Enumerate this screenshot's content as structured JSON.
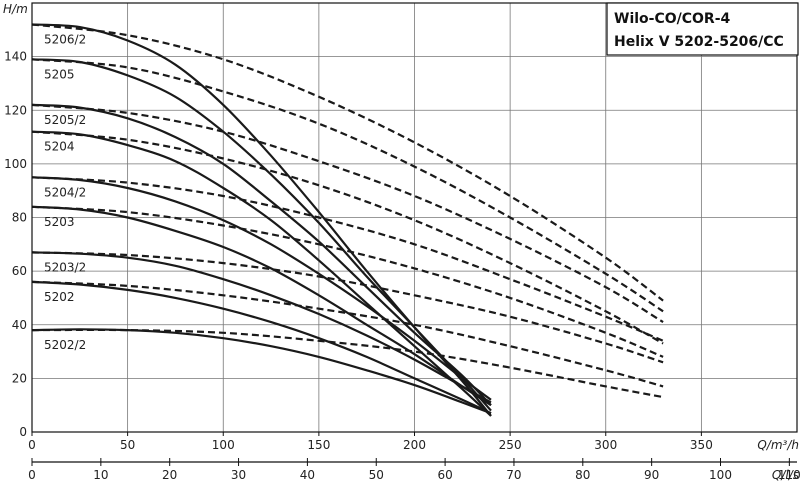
{
  "chart_data": {
    "type": "line",
    "title": [
      "Wilo-CO/COR-4",
      "Helix V 5202-5206/CC"
    ],
    "xlabel": "Q/m³/h",
    "x2label": "Q/l/s",
    "ylabel": "H/m",
    "xlim": [
      0,
      400
    ],
    "x2lim": [
      0,
      111.1
    ],
    "ylim": [
      0,
      160
    ],
    "xticks": [
      "0",
      "50",
      "100",
      "150",
      "200",
      "250",
      "300",
      "350"
    ],
    "x2ticks": [
      "0",
      "10",
      "20",
      "30",
      "40",
      "50",
      "60",
      "70",
      "80",
      "90",
      "100",
      "110"
    ],
    "yticks": [
      "0",
      "20",
      "40",
      "60",
      "80",
      "100",
      "120",
      "140"
    ],
    "grid": true,
    "series": [
      {
        "name": "5206/2",
        "solid": [
          [
            0,
            152
          ],
          [
            25,
            151
          ],
          [
            50,
            146
          ],
          [
            75,
            137
          ],
          [
            100,
            122
          ],
          [
            125,
            103
          ],
          [
            150,
            82
          ],
          [
            175,
            60
          ],
          [
            200,
            39
          ],
          [
            225,
            19
          ],
          [
            240,
            6
          ]
        ],
        "dashed": [
          [
            0,
            152
          ],
          [
            50,
            148
          ],
          [
            100,
            139
          ],
          [
            150,
            125
          ],
          [
            200,
            108
          ],
          [
            250,
            88
          ],
          [
            300,
            65
          ],
          [
            330,
            49
          ]
        ]
      },
      {
        "name": "5205",
        "solid": [
          [
            0,
            139
          ],
          [
            25,
            138
          ],
          [
            50,
            133
          ],
          [
            75,
            125
          ],
          [
            100,
            112
          ],
          [
            125,
            96
          ],
          [
            150,
            78
          ],
          [
            175,
            58
          ],
          [
            200,
            39
          ],
          [
            225,
            20
          ],
          [
            240,
            8
          ]
        ],
        "dashed": [
          [
            0,
            139
          ],
          [
            50,
            136
          ],
          [
            100,
            127
          ],
          [
            150,
            115
          ],
          [
            200,
            99
          ],
          [
            250,
            80
          ],
          [
            300,
            59
          ],
          [
            330,
            45
          ]
        ]
      },
      {
        "name": "5205/2",
        "solid": [
          [
            0,
            122
          ],
          [
            25,
            121
          ],
          [
            50,
            117
          ],
          [
            75,
            110
          ],
          [
            100,
            100
          ],
          [
            125,
            86
          ],
          [
            150,
            71
          ],
          [
            175,
            54
          ],
          [
            200,
            37
          ],
          [
            225,
            21
          ],
          [
            240,
            10
          ]
        ],
        "dashed": [
          [
            0,
            122
          ],
          [
            50,
            119
          ],
          [
            100,
            112
          ],
          [
            150,
            101
          ],
          [
            200,
            88
          ],
          [
            250,
            72
          ],
          [
            300,
            54
          ],
          [
            330,
            41
          ]
        ]
      },
      {
        "name": "5204",
        "solid": [
          [
            0,
            112
          ],
          [
            25,
            111
          ],
          [
            50,
            107
          ],
          [
            75,
            101
          ],
          [
            100,
            91
          ],
          [
            125,
            79
          ],
          [
            150,
            64
          ],
          [
            175,
            48
          ],
          [
            200,
            32
          ],
          [
            225,
            16
          ],
          [
            240,
            6
          ]
        ],
        "dashed": [
          [
            0,
            112
          ],
          [
            50,
            109
          ],
          [
            100,
            102
          ],
          [
            150,
            92
          ],
          [
            200,
            79
          ],
          [
            250,
            63
          ],
          [
            300,
            45
          ],
          [
            330,
            33
          ]
        ]
      },
      {
        "name": "5204/2",
        "solid": [
          [
            0,
            95
          ],
          [
            25,
            94
          ],
          [
            50,
            91
          ],
          [
            75,
            86
          ],
          [
            100,
            79
          ],
          [
            125,
            70
          ],
          [
            150,
            59
          ],
          [
            175,
            47
          ],
          [
            200,
            34
          ],
          [
            225,
            20
          ],
          [
            240,
            12
          ]
        ],
        "dashed": [
          [
            0,
            95
          ],
          [
            50,
            93
          ],
          [
            100,
            88
          ],
          [
            150,
            80
          ],
          [
            200,
            70
          ],
          [
            250,
            57
          ],
          [
            300,
            43
          ],
          [
            330,
            34
          ]
        ]
      },
      {
        "name": "5203",
        "solid": [
          [
            0,
            84
          ],
          [
            25,
            83
          ],
          [
            50,
            80
          ],
          [
            75,
            75
          ],
          [
            100,
            69
          ],
          [
            125,
            61
          ],
          [
            150,
            51
          ],
          [
            175,
            40
          ],
          [
            200,
            29
          ],
          [
            225,
            17
          ],
          [
            240,
            10
          ]
        ],
        "dashed": [
          [
            0,
            84
          ],
          [
            50,
            82
          ],
          [
            100,
            77
          ],
          [
            150,
            70
          ],
          [
            200,
            61
          ],
          [
            250,
            50
          ],
          [
            300,
            37
          ],
          [
            330,
            28
          ]
        ]
      },
      {
        "name": "5203/2",
        "solid": [
          [
            0,
            67
          ],
          [
            25,
            66.5
          ],
          [
            50,
            65
          ],
          [
            75,
            62
          ],
          [
            100,
            57
          ],
          [
            125,
            51
          ],
          [
            150,
            44
          ],
          [
            175,
            36
          ],
          [
            200,
            27
          ],
          [
            225,
            17
          ],
          [
            240,
            11
          ]
        ],
        "dashed": [
          [
            0,
            67
          ],
          [
            50,
            66
          ],
          [
            100,
            63
          ],
          [
            150,
            58
          ],
          [
            200,
            51
          ],
          [
            250,
            43
          ],
          [
            300,
            33
          ],
          [
            330,
            26
          ]
        ]
      },
      {
        "name": "5202",
        "solid": [
          [
            0,
            56
          ],
          [
            25,
            55
          ],
          [
            50,
            53
          ],
          [
            75,
            50
          ],
          [
            100,
            46
          ],
          [
            125,
            41
          ],
          [
            150,
            35
          ],
          [
            175,
            28
          ],
          [
            200,
            20
          ],
          [
            225,
            12
          ],
          [
            240,
            7
          ]
        ],
        "dashed": [
          [
            0,
            56
          ],
          [
            50,
            54.5
          ],
          [
            100,
            51
          ],
          [
            150,
            46
          ],
          [
            200,
            40
          ],
          [
            250,
            32
          ],
          [
            300,
            23
          ],
          [
            330,
            17
          ]
        ]
      },
      {
        "name": "5202/2",
        "solid": [
          [
            0,
            38
          ],
          [
            25,
            38.3
          ],
          [
            50,
            38
          ],
          [
            75,
            37
          ],
          [
            100,
            35
          ],
          [
            125,
            32
          ],
          [
            150,
            28
          ],
          [
            175,
            23
          ],
          [
            200,
            17.5
          ],
          [
            225,
            11
          ],
          [
            240,
            7
          ]
        ],
        "dashed": [
          [
            0,
            38
          ],
          [
            50,
            38
          ],
          [
            100,
            37
          ],
          [
            150,
            34
          ],
          [
            200,
            30
          ],
          [
            250,
            24
          ],
          [
            300,
            17
          ],
          [
            330,
            13
          ]
        ]
      }
    ]
  }
}
